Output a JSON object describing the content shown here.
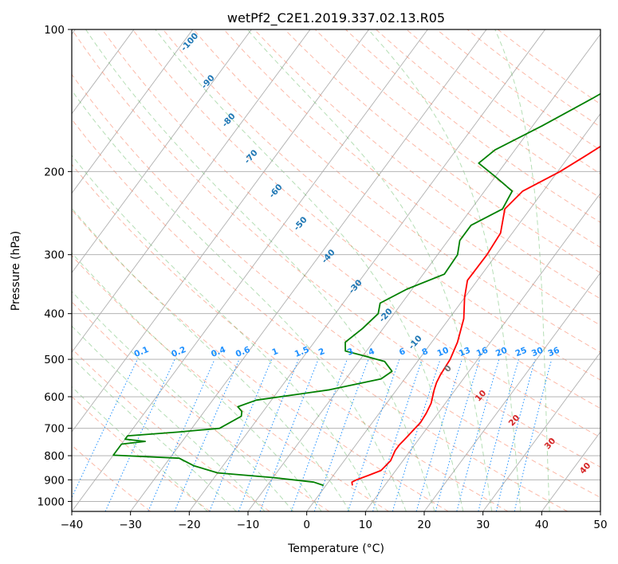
{
  "chart_data": {
    "type": "line",
    "title": "wetPf2_C2E1.2019.337.02.13.R05",
    "xlabel": "Temperature (°C)",
    "ylabel": "Pressure (hPa)",
    "xlim": [
      -40,
      50
    ],
    "ylim": [
      1050,
      100
    ],
    "y_scale": "log",
    "grid": true,
    "x_ticks": [
      -40,
      -30,
      -20,
      -10,
      0,
      10,
      20,
      30,
      40,
      50
    ],
    "y_ticks": [
      100,
      200,
      300,
      400,
      500,
      600,
      700,
      800,
      900,
      1000
    ],
    "dry_adiabat_labels": [
      "-100",
      "-90",
      "-80",
      "-70",
      "-60",
      "-50",
      "-40",
      "-30",
      "-20",
      "-10",
      "0",
      "10",
      "20",
      "30",
      "40"
    ],
    "mixing_ratio_labels": [
      "0.1",
      "0.2",
      "0.4",
      "0.6",
      "1",
      "1.5",
      "2",
      "3",
      "4",
      "6",
      "8",
      "10",
      "13",
      "16",
      "20",
      "25",
      "30",
      "36"
    ],
    "colors": {
      "temperature": "#ff0000",
      "dewpoint": "#008000",
      "isotherm": "#b0b0b0",
      "dry_adiabat": "#fa8060",
      "moist_adiabat": "#2ca02c",
      "mixing_ratio": "#1e90ff",
      "dry_label": "#1f77b4",
      "dry_label_warm": "#d62728"
    },
    "series": [
      {
        "name": "Temperature",
        "points": [
          [
            4.5,
            925
          ],
          [
            4.0,
            910
          ],
          [
            4.5,
            900
          ],
          [
            6.0,
            880
          ],
          [
            7.5,
            860
          ],
          [
            7.9,
            820
          ],
          [
            7.4,
            780
          ],
          [
            7.4,
            760
          ],
          [
            7.6,
            740
          ],
          [
            7.9,
            710
          ],
          [
            8.2,
            680
          ],
          [
            8.0,
            650
          ],
          [
            7.6,
            620
          ],
          [
            6.4,
            580
          ],
          [
            5.9,
            560
          ],
          [
            5.6,
            540
          ],
          [
            5.3,
            500
          ],
          [
            4.4,
            460
          ],
          [
            2.5,
            410
          ],
          [
            0,
            370
          ],
          [
            -1.7,
            340
          ],
          [
            -1.6,
            300
          ],
          [
            -2.0,
            270
          ],
          [
            -4.3,
            240
          ],
          [
            -3.5,
            220
          ],
          [
            0.4,
            200
          ],
          [
            2.8,
            185
          ],
          [
            5.3,
            170
          ],
          [
            7.3,
            160
          ],
          [
            10.5,
            145
          ],
          [
            15.0,
            130
          ],
          [
            19.2,
            118
          ],
          [
            22.0,
            110
          ],
          [
            24.1,
            104
          ],
          [
            25.3,
            100
          ]
        ]
      },
      {
        "name": "Dewpoint",
        "points": [
          [
            -0.4,
            925
          ],
          [
            -2.5,
            910
          ],
          [
            -10,
            890
          ],
          [
            -20,
            870
          ],
          [
            -25,
            840
          ],
          [
            -28.4,
            810
          ],
          [
            -40,
            798
          ],
          [
            -40,
            756
          ],
          [
            -36.3,
            746
          ],
          [
            -40,
            738
          ],
          [
            -40,
            726
          ],
          [
            -31.9,
            713
          ],
          [
            -25.3,
            700
          ],
          [
            -23.1,
            660
          ],
          [
            -23.6,
            645
          ],
          [
            -24.9,
            630
          ],
          [
            -22.6,
            610
          ],
          [
            -11.4,
            580
          ],
          [
            -4.0,
            550
          ],
          [
            -3.1,
            530
          ],
          [
            -5.6,
            505
          ],
          [
            -10.3,
            490
          ],
          [
            -13.6,
            480
          ],
          [
            -14.7,
            460
          ],
          [
            -13.5,
            430
          ],
          [
            -12.7,
            400
          ],
          [
            -13.7,
            380
          ],
          [
            -10.9,
            355
          ],
          [
            -6.4,
            330
          ],
          [
            -6.6,
            300
          ],
          [
            -8.0,
            280
          ],
          [
            -8.0,
            260
          ],
          [
            -4.7,
            240
          ],
          [
            -5.3,
            220
          ],
          [
            -10.0,
            205
          ],
          [
            -14.5,
            192
          ],
          [
            -13.4,
            180
          ],
          [
            -8.4,
            160
          ],
          [
            -3.3,
            140
          ],
          [
            2.1,
            120
          ],
          [
            4.6,
            110
          ],
          [
            6.5,
            100
          ]
        ]
      }
    ]
  }
}
